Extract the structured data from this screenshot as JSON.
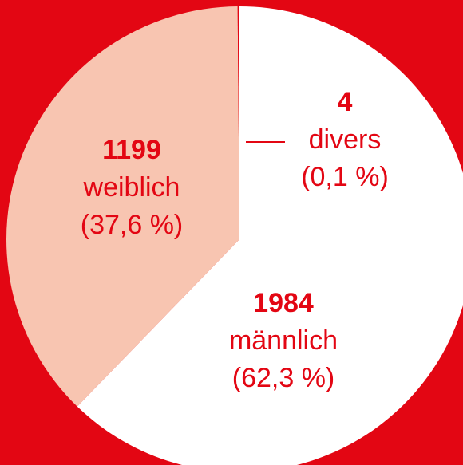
{
  "chart_data": {
    "type": "pie",
    "categories": [
      "männlich",
      "weiblich",
      "divers"
    ],
    "values": [
      1984,
      1199,
      4
    ],
    "percent_labels": [
      "(62,3 %)",
      "(37,6 %)",
      "(0,1 %)"
    ],
    "colors": [
      "#ffffff",
      "#f8c5b1",
      "#e30613"
    ],
    "background": "#e30613"
  }
}
